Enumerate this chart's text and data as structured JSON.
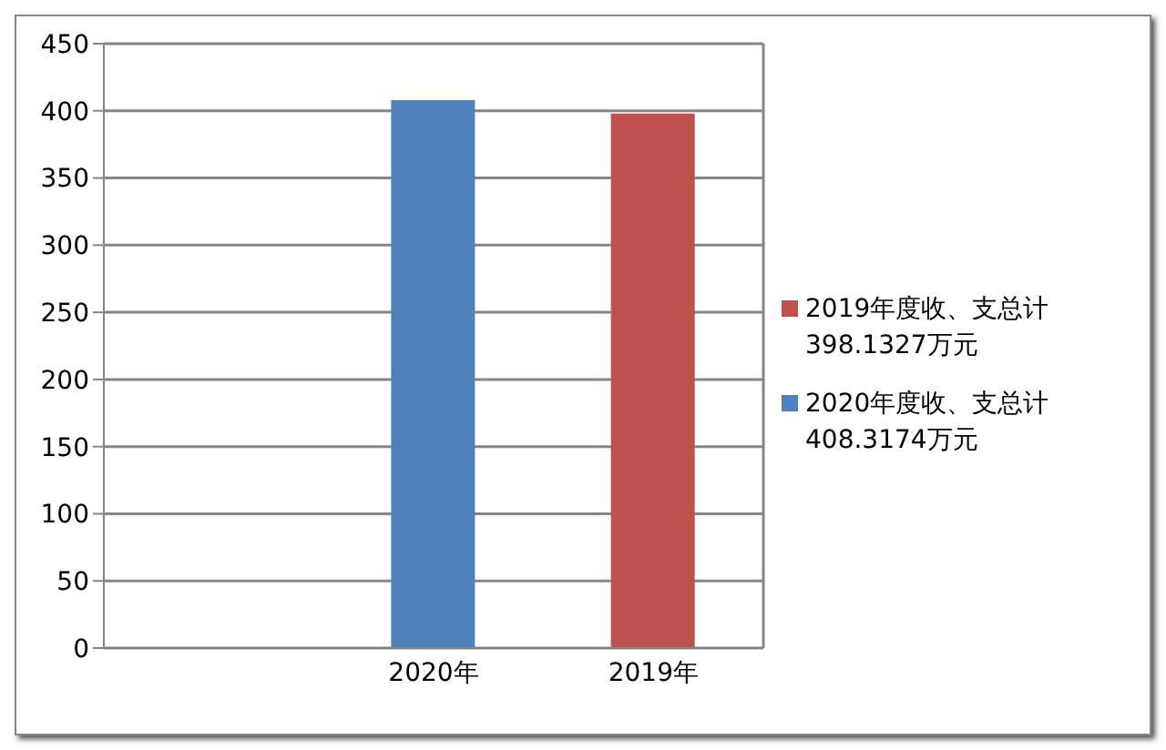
{
  "chart_data": {
    "type": "bar",
    "categories": [
      null,
      "2020年",
      "2019年"
    ],
    "series": [
      {
        "name": "2019年度收、支总计\n398.1327万元",
        "color": "#c0504d",
        "values": [
          null,
          null,
          398
        ]
      },
      {
        "name": "2020年度收、支总计\n408.3174万元",
        "color": "#4f81bd",
        "values": [
          null,
          408,
          null
        ]
      }
    ],
    "ylim": [
      0,
      450
    ],
    "yticks": [
      0,
      50,
      100,
      150,
      200,
      250,
      300,
      350,
      400,
      450
    ],
    "grid": "y",
    "legend": "right"
  }
}
